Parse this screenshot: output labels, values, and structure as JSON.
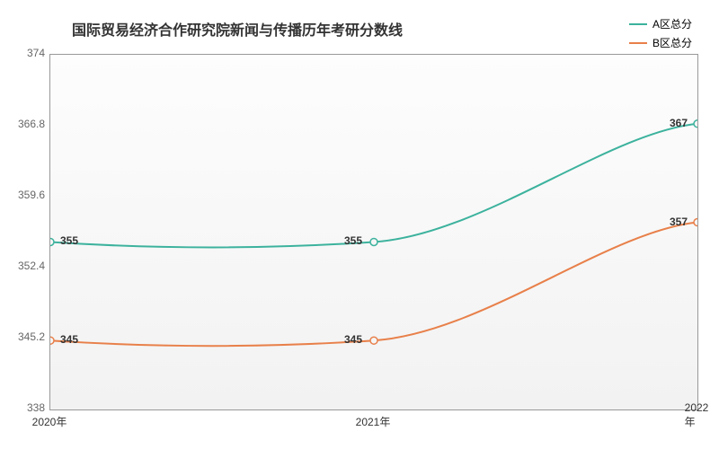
{
  "chart": {
    "type": "line",
    "title": "国际贸易经济合作研究院新闻与传播历年考研分数线",
    "title_fontsize": 16,
    "background_color": "#ffffff",
    "plot_bg_gradient": [
      "#fdfdfd",
      "#f2f2f2"
    ],
    "border_color": "#999999",
    "xlabels": [
      "2020年",
      "2021年",
      "2022年"
    ],
    "ylim": [
      338,
      374
    ],
    "yticks": [
      338,
      345.2,
      352.4,
      359.6,
      366.8,
      374
    ],
    "series": [
      {
        "name": "A区总分",
        "color": "#3cb29d",
        "values": [
          355,
          355,
          367
        ],
        "line_width": 2
      },
      {
        "name": "B区总分",
        "color": "#e8804a",
        "values": [
          345,
          345,
          357
        ],
        "line_width": 2
      }
    ],
    "marker_radius": 4,
    "marker_fill": "#f5f5f5",
    "label_fontsize": 12
  }
}
